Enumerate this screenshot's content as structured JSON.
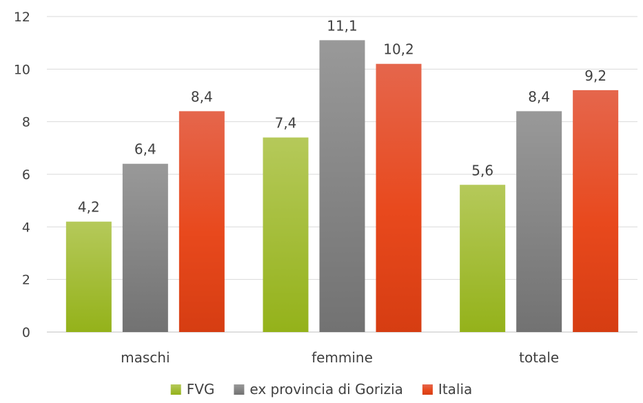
{
  "chart_data": {
    "type": "bar",
    "categories": [
      "maschi",
      "femmine",
      "totale"
    ],
    "series": [
      {
        "name": "FVG",
        "values": [
          4.2,
          7.4,
          5.6
        ],
        "labels": [
          "4,2",
          "7,4",
          "5,6"
        ],
        "color": "#9bbb2a"
      },
      {
        "name": "ex provincia di Gorizia",
        "values": [
          6.4,
          11.1,
          8.4
        ],
        "labels": [
          "6,4",
          "11,1",
          "8,4"
        ],
        "color": "#7f7f7f"
      },
      {
        "name": "Italia",
        "values": [
          8.4,
          10.2,
          9.2
        ],
        "labels": [
          "8,4",
          "10,2",
          "9,2"
        ],
        "color": "#e8491d"
      }
    ],
    "yticks": [
      "0",
      "2",
      "4",
      "6",
      "8",
      "10",
      "12"
    ],
    "ylim": [
      0,
      12
    ],
    "grid": true,
    "legend_position": "bottom"
  }
}
